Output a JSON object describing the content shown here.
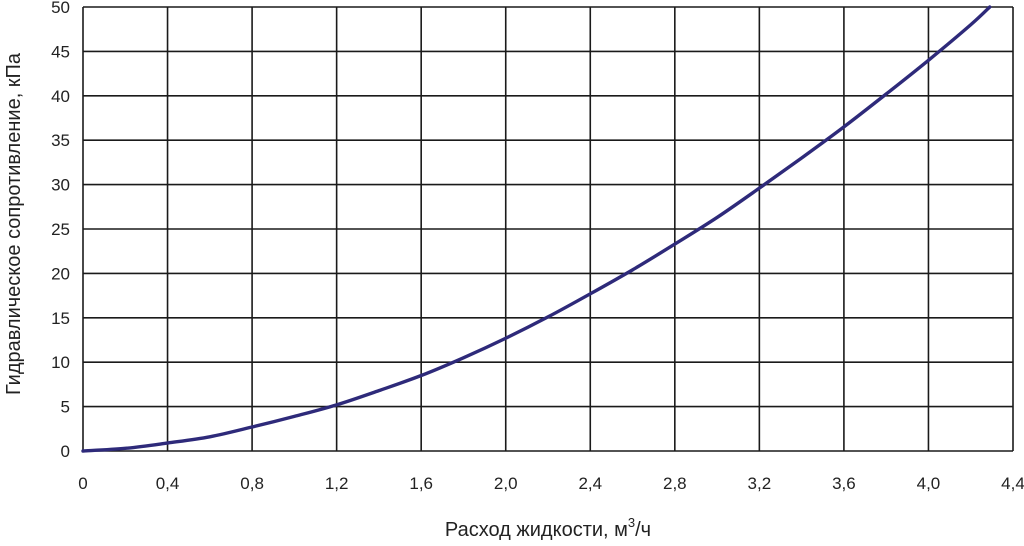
{
  "chart_data": {
    "type": "line",
    "xlabel": "Расход жидкости, м",
    "xlabel_sup": "3",
    "xlabel_suffix": "/ч",
    "ylabel": "Гидравлическое сопротивление, кПа",
    "xlim": [
      0,
      4.4
    ],
    "ylim": [
      0,
      50
    ],
    "grid": true,
    "x_ticks": [
      "0",
      "0,4",
      "0,8",
      "1,2",
      "1,6",
      "2,0",
      "2,4",
      "2,8",
      "3,2",
      "3,6",
      "4,0",
      "4,4"
    ],
    "y_ticks": [
      "0",
      "5",
      "10",
      "15",
      "20",
      "25",
      "30",
      "35",
      "40",
      "45",
      "50"
    ],
    "series": [
      {
        "color": "#2e2a7a",
        "x": [
          0,
          0.2,
          0.4,
          0.6,
          0.8,
          1.0,
          1.2,
          1.4,
          1.6,
          1.8,
          2.0,
          2.2,
          2.4,
          2.6,
          2.8,
          3.0,
          3.2,
          3.4,
          3.6,
          3.8,
          4.0,
          4.2,
          4.29
        ],
        "y": [
          0,
          0.3,
          0.9,
          1.6,
          2.7,
          3.9,
          5.2,
          6.8,
          8.5,
          10.5,
          12.7,
          15.1,
          17.7,
          20.4,
          23.3,
          26.3,
          29.6,
          33.0,
          36.5,
          40.2,
          44.0,
          48.0,
          50.0
        ]
      }
    ]
  }
}
